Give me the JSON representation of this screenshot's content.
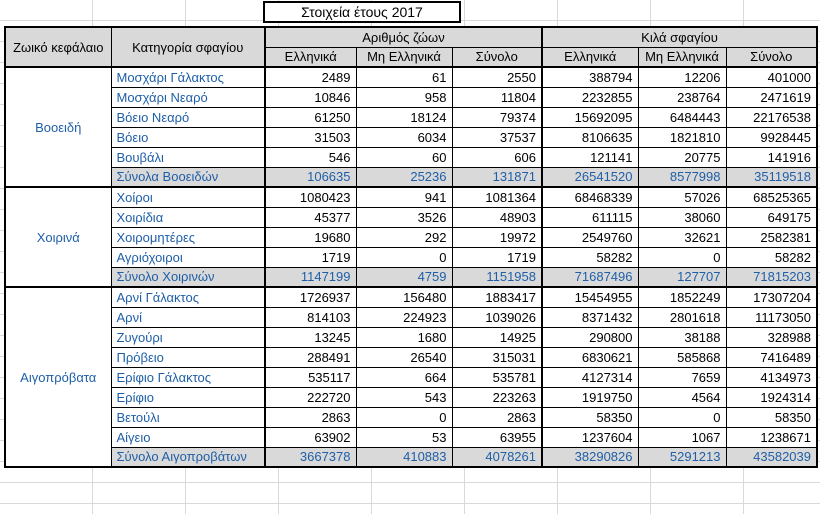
{
  "title": "Στοιχεία έτους 2017",
  "headers": {
    "animal_group": "Ζωικό κεφάλαιο",
    "category": "Κατηγορία σφαγίου",
    "count_group": "Αριθμός ζώων",
    "kilo_group": "Κιλά σφαγίου",
    "sub": [
      "Ελληνικά",
      "Μη Ελληνικά",
      "Σύνολο",
      "Ελληνικά",
      "Μη Ελληνικά",
      "Σύνολο"
    ]
  },
  "groups": [
    {
      "name": "Βοοειδή",
      "rows": [
        {
          "label": "Μοσχάρι Γάλακτος",
          "values": [
            "2489",
            "61",
            "2550",
            "388794",
            "12206",
            "401000"
          ]
        },
        {
          "label": "Μοσχάρι Νεαρό",
          "values": [
            "10846",
            "958",
            "11804",
            "2232855",
            "238764",
            "2471619"
          ]
        },
        {
          "label": "Βόειο Νεαρό",
          "values": [
            "61250",
            "18124",
            "79374",
            "15692095",
            "6484443",
            "22176538"
          ]
        },
        {
          "label": "Βόειο",
          "values": [
            "31503",
            "6034",
            "37537",
            "8106635",
            "1821810",
            "9928445"
          ]
        },
        {
          "label": "Βουβάλι",
          "values": [
            "546",
            "60",
            "606",
            "121141",
            "20775",
            "141916"
          ]
        }
      ],
      "total": {
        "label": "Σύνολα Βοοειδών",
        "values": [
          "106635",
          "25236",
          "131871",
          "26541520",
          "8577998",
          "35119518"
        ]
      }
    },
    {
      "name": "Χοιρινά",
      "rows": [
        {
          "label": "Χοίροι",
          "values": [
            "1080423",
            "941",
            "1081364",
            "68468339",
            "57026",
            "68525365"
          ]
        },
        {
          "label": "Χοιρίδια",
          "values": [
            "45377",
            "3526",
            "48903",
            "611115",
            "38060",
            "649175"
          ]
        },
        {
          "label": "Χοιρομητέρες",
          "values": [
            "19680",
            "292",
            "19972",
            "2549760",
            "32621",
            "2582381"
          ]
        },
        {
          "label": "Αγριόχοιροι",
          "values": [
            "1719",
            "0",
            "1719",
            "58282",
            "0",
            "58282"
          ]
        }
      ],
      "total": {
        "label": "Σύνολο Χοιρινών",
        "values": [
          "1147199",
          "4759",
          "1151958",
          "71687496",
          "127707",
          "71815203"
        ]
      }
    },
    {
      "name": "Αιγοπρόβατα",
      "rows": [
        {
          "label": "Αρνί Γάλακτος",
          "values": [
            "1726937",
            "156480",
            "1883417",
            "15454955",
            "1852249",
            "17307204"
          ]
        },
        {
          "label": "Αρνί",
          "values": [
            "814103",
            "224923",
            "1039026",
            "8371432",
            "2801618",
            "11173050"
          ]
        },
        {
          "label": "Ζυγούρι",
          "values": [
            "13245",
            "1680",
            "14925",
            "290800",
            "38188",
            "328988"
          ]
        },
        {
          "label": "Πρόβειο",
          "values": [
            "288491",
            "26540",
            "315031",
            "6830621",
            "585868",
            "7416489"
          ]
        },
        {
          "label": "Ερίφιο Γάλακτος",
          "values": [
            "535117",
            "664",
            "535781",
            "4127314",
            "7659",
            "4134973"
          ]
        },
        {
          "label": "Ερίφιο",
          "values": [
            "222720",
            "543",
            "223263",
            "1919750",
            "4564",
            "1924314"
          ]
        },
        {
          "label": "Βετούλι",
          "values": [
            "2863",
            "0",
            "2863",
            "58350",
            "0",
            "58350"
          ]
        },
        {
          "label": "Αίγειο",
          "values": [
            "63902",
            "53",
            "63955",
            "1237604",
            "1067",
            "1238671"
          ]
        }
      ],
      "total": {
        "label": "Σύνολο Αιγοπροβάτων",
        "values": [
          "3667378",
          "410883",
          "4078261",
          "38290826",
          "5291213",
          "43582039"
        ]
      }
    }
  ]
}
